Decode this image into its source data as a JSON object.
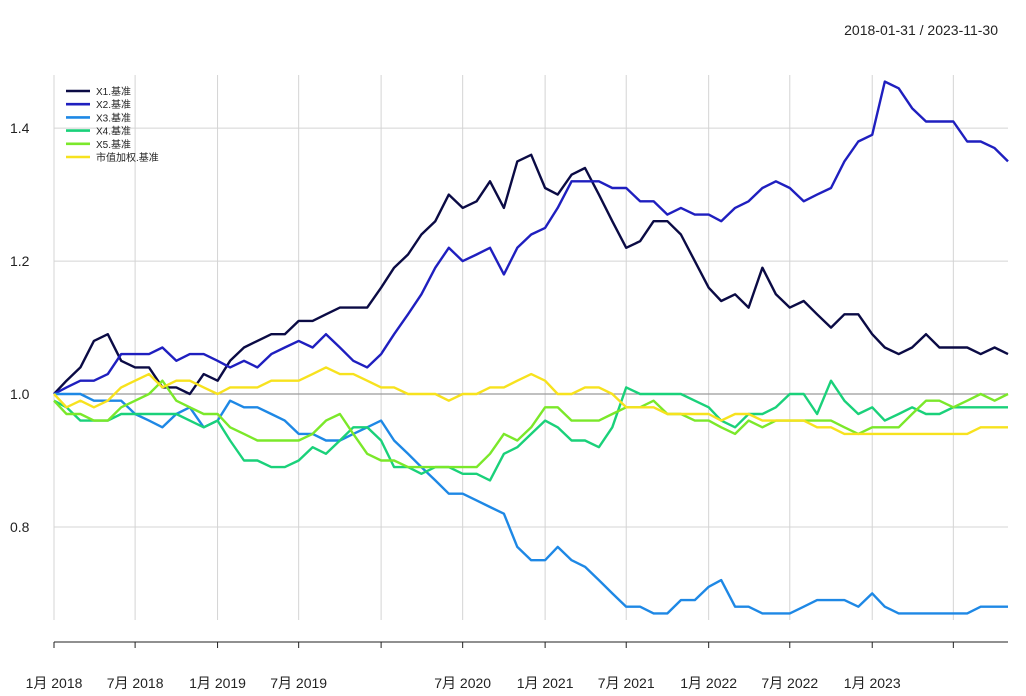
{
  "header": {
    "date_range": "2018-01-31 / 2023-11-30"
  },
  "chart_data": {
    "type": "line",
    "title": "",
    "xlabel": "",
    "ylabel": "",
    "ylim": [
      0.66,
      1.48
    ],
    "yticks": [
      0.8,
      1.0,
      1.2,
      1.4
    ],
    "ytick_labels": [
      "0.8",
      "1.0",
      "1.2",
      "1.4"
    ],
    "xlim": [
      "2018-01-31",
      "2023-11-30"
    ],
    "xticks": [
      "2018-01-31",
      "2018-07-31",
      "2019-01-31",
      "2019-07-31",
      "2020-07-31",
      "2021-01-31",
      "2021-07-31",
      "2022-01-31",
      "2022-07-31",
      "2023-01-31"
    ],
    "xtick_labels": [
      "1月 2018",
      "7月 2018",
      "1月 2019",
      "7月 2019",
      "7月 2020",
      "1月 2021",
      "7月 2021",
      "1月 2022",
      "7月 2022",
      "1月 2023"
    ],
    "axis_marks": [
      "2018-01-31",
      "2018-07-31",
      "2019-01-31",
      "2019-07-31",
      "2020-01-31",
      "2020-07-31",
      "2021-01-31",
      "2021-07-31",
      "2022-01-31",
      "2022-07-31",
      "2023-01-31",
      "2023-07-31"
    ],
    "vgrid": [
      "2018-01-31",
      "2018-07-31",
      "2019-01-31",
      "2019-07-31",
      "2020-01-31",
      "2020-07-31",
      "2021-01-31",
      "2021-07-31",
      "2022-01-31",
      "2022-07-31",
      "2023-01-31",
      "2023-07-31"
    ],
    "reference_line": 1.0,
    "grid": true,
    "legend_position": "top-left",
    "x": [
      "2018-01-31",
      "2018-02-28",
      "2018-03-31",
      "2018-04-30",
      "2018-05-31",
      "2018-06-30",
      "2018-07-31",
      "2018-08-31",
      "2018-09-30",
      "2018-10-31",
      "2018-11-30",
      "2018-12-31",
      "2019-01-31",
      "2019-02-28",
      "2019-03-31",
      "2019-04-30",
      "2019-05-31",
      "2019-06-30",
      "2019-07-31",
      "2019-08-31",
      "2019-09-30",
      "2019-10-31",
      "2019-11-30",
      "2019-12-31",
      "2020-01-31",
      "2020-02-29",
      "2020-03-31",
      "2020-04-30",
      "2020-05-31",
      "2020-06-30",
      "2020-07-31",
      "2020-08-31",
      "2020-09-30",
      "2020-10-31",
      "2020-11-30",
      "2020-12-31",
      "2021-01-31",
      "2021-02-28",
      "2021-03-31",
      "2021-04-30",
      "2021-05-31",
      "2021-06-30",
      "2021-07-31",
      "2021-08-31",
      "2021-09-30",
      "2021-10-31",
      "2021-11-30",
      "2021-12-31",
      "2022-01-31",
      "2022-02-28",
      "2022-03-31",
      "2022-04-30",
      "2022-05-31",
      "2022-06-30",
      "2022-07-31",
      "2022-08-31",
      "2022-09-30",
      "2022-10-31",
      "2022-11-30",
      "2022-12-31",
      "2023-01-31",
      "2023-02-28",
      "2023-03-31",
      "2023-04-30",
      "2023-05-31",
      "2023-06-30",
      "2023-07-31",
      "2023-08-31",
      "2023-09-30",
      "2023-10-31",
      "2023-11-30"
    ],
    "series": [
      {
        "name": "X1.基准",
        "color": "#0b0b45",
        "values": [
          1.0,
          1.02,
          1.04,
          1.08,
          1.09,
          1.05,
          1.04,
          1.04,
          1.01,
          1.01,
          1.0,
          1.03,
          1.02,
          1.05,
          1.07,
          1.08,
          1.09,
          1.09,
          1.11,
          1.11,
          1.12,
          1.13,
          1.13,
          1.13,
          1.16,
          1.19,
          1.21,
          1.24,
          1.26,
          1.3,
          1.28,
          1.29,
          1.32,
          1.28,
          1.35,
          1.36,
          1.31,
          1.3,
          1.33,
          1.34,
          1.3,
          1.26,
          1.22,
          1.23,
          1.26,
          1.26,
          1.24,
          1.2,
          1.16,
          1.14,
          1.15,
          1.13,
          1.19,
          1.15,
          1.13,
          1.14,
          1.12,
          1.1,
          1.12,
          1.12,
          1.09,
          1.07,
          1.06,
          1.07,
          1.09,
          1.07,
          1.07,
          1.07,
          1.06,
          1.07,
          1.06
        ]
      },
      {
        "name": "X2.基准",
        "color": "#1f1fbf",
        "values": [
          1.0,
          1.01,
          1.02,
          1.02,
          1.03,
          1.06,
          1.06,
          1.06,
          1.07,
          1.05,
          1.06,
          1.06,
          1.05,
          1.04,
          1.05,
          1.04,
          1.06,
          1.07,
          1.08,
          1.07,
          1.09,
          1.07,
          1.05,
          1.04,
          1.06,
          1.09,
          1.12,
          1.15,
          1.19,
          1.22,
          1.2,
          1.21,
          1.22,
          1.18,
          1.22,
          1.24,
          1.25,
          1.28,
          1.32,
          1.32,
          1.32,
          1.31,
          1.31,
          1.29,
          1.29,
          1.27,
          1.28,
          1.27,
          1.27,
          1.26,
          1.28,
          1.29,
          1.31,
          1.32,
          1.31,
          1.29,
          1.3,
          1.31,
          1.35,
          1.38,
          1.39,
          1.47,
          1.46,
          1.43,
          1.41,
          1.41,
          1.41,
          1.38,
          1.38,
          1.37,
          1.35
        ]
      },
      {
        "name": "X3.基准",
        "color": "#1e88e5",
        "values": [
          1.0,
          1.0,
          1.0,
          0.99,
          0.99,
          0.99,
          0.97,
          0.96,
          0.95,
          0.97,
          0.98,
          0.95,
          0.96,
          0.99,
          0.98,
          0.98,
          0.97,
          0.96,
          0.94,
          0.94,
          0.93,
          0.93,
          0.94,
          0.95,
          0.96,
          0.93,
          0.91,
          0.89,
          0.87,
          0.85,
          0.85,
          0.84,
          0.83,
          0.82,
          0.77,
          0.75,
          0.75,
          0.77,
          0.75,
          0.74,
          0.72,
          0.7,
          0.68,
          0.68,
          0.67,
          0.67,
          0.69,
          0.69,
          0.71,
          0.72,
          0.68,
          0.68,
          0.67,
          0.67,
          0.67,
          0.68,
          0.69,
          0.69,
          0.69,
          0.68,
          0.7,
          0.68,
          0.67,
          0.67,
          0.67,
          0.67,
          0.67,
          0.67,
          0.68,
          0.68,
          0.68
        ]
      },
      {
        "name": "X4.基准",
        "color": "#1ad17a",
        "values": [
          0.99,
          0.98,
          0.96,
          0.96,
          0.96,
          0.97,
          0.97,
          0.97,
          0.97,
          0.97,
          0.96,
          0.95,
          0.96,
          0.93,
          0.9,
          0.9,
          0.89,
          0.89,
          0.9,
          0.92,
          0.91,
          0.93,
          0.95,
          0.95,
          0.93,
          0.89,
          0.89,
          0.88,
          0.89,
          0.89,
          0.88,
          0.88,
          0.87,
          0.91,
          0.92,
          0.94,
          0.96,
          0.95,
          0.93,
          0.93,
          0.92,
          0.95,
          1.01,
          1.0,
          1.0,
          1.0,
          1.0,
          0.99,
          0.98,
          0.96,
          0.95,
          0.97,
          0.97,
          0.98,
          1.0,
          1.0,
          0.97,
          1.02,
          0.99,
          0.97,
          0.98,
          0.96,
          0.97,
          0.98,
          0.97,
          0.97,
          0.98,
          0.98,
          0.98,
          0.98,
          0.98
        ]
      },
      {
        "name": "X5.基准",
        "color": "#7be82a",
        "values": [
          0.99,
          0.97,
          0.97,
          0.96,
          0.96,
          0.98,
          0.99,
          1.0,
          1.02,
          0.99,
          0.98,
          0.97,
          0.97,
          0.95,
          0.94,
          0.93,
          0.93,
          0.93,
          0.93,
          0.94,
          0.96,
          0.97,
          0.94,
          0.91,
          0.9,
          0.9,
          0.89,
          0.89,
          0.89,
          0.89,
          0.89,
          0.89,
          0.91,
          0.94,
          0.93,
          0.95,
          0.98,
          0.98,
          0.96,
          0.96,
          0.96,
          0.97,
          0.98,
          0.98,
          0.99,
          0.97,
          0.97,
          0.96,
          0.96,
          0.95,
          0.94,
          0.96,
          0.95,
          0.96,
          0.96,
          0.96,
          0.96,
          0.96,
          0.95,
          0.94,
          0.95,
          0.95,
          0.95,
          0.97,
          0.99,
          0.99,
          0.98,
          0.99,
          1.0,
          0.99,
          1.0
        ]
      },
      {
        "name": "市值加权.基准",
        "color": "#f7e21e",
        "values": [
          1.0,
          0.98,
          0.99,
          0.98,
          0.99,
          1.01,
          1.02,
          1.03,
          1.01,
          1.02,
          1.02,
          1.01,
          1.0,
          1.01,
          1.01,
          1.01,
          1.02,
          1.02,
          1.02,
          1.03,
          1.04,
          1.03,
          1.03,
          1.02,
          1.01,
          1.01,
          1.0,
          1.0,
          1.0,
          0.99,
          1.0,
          1.0,
          1.01,
          1.01,
          1.02,
          1.03,
          1.02,
          1.0,
          1.0,
          1.01,
          1.01,
          1.0,
          0.98,
          0.98,
          0.98,
          0.97,
          0.97,
          0.97,
          0.97,
          0.96,
          0.97,
          0.97,
          0.96,
          0.96,
          0.96,
          0.96,
          0.95,
          0.95,
          0.94,
          0.94,
          0.94,
          0.94,
          0.94,
          0.94,
          0.94,
          0.94,
          0.94,
          0.94,
          0.95,
          0.95,
          0.95
        ]
      }
    ]
  }
}
